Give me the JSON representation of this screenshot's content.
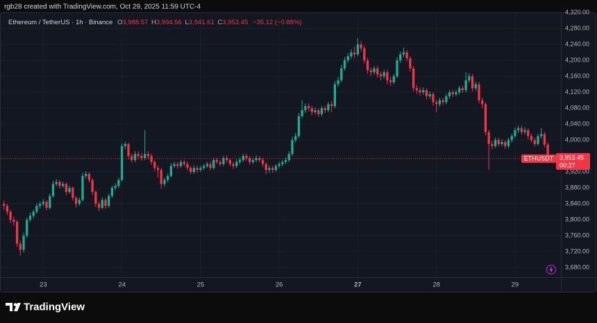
{
  "chart_data": {
    "type": "candlestick",
    "credit": "rgb28 created with TradingView.com, Oct 29, 2025 11:59 UTC-4",
    "header": {
      "symbol": "Ethereum / TetherUS · 1h · Binance",
      "ohlc": [
        {
          "key": "O",
          "text": "3,988.57"
        },
        {
          "key": "H",
          "text": "3,994.56"
        },
        {
          "key": "L",
          "text": "3,941.61"
        },
        {
          "key": "C",
          "text": "3,953.45"
        }
      ],
      "change": "−35.12 (−0.88%)"
    },
    "price_tag": {
      "symbol": "ETHUSDT",
      "price": "3,953.45",
      "countdown": "00:27"
    },
    "brand": "TradingView",
    "up_color": "#22ab94",
    "down_color": "#f23645",
    "grid": true,
    "xlim": [
      -1,
      170
    ],
    "xticks": [
      {
        "value": 12,
        "label": "23"
      },
      {
        "value": 36,
        "label": "24"
      },
      {
        "value": 60,
        "label": "25"
      },
      {
        "value": 84,
        "label": "26"
      },
      {
        "value": 108,
        "label": "27"
      },
      {
        "value": 132,
        "label": "28"
      },
      {
        "value": 156,
        "label": "29"
      }
    ],
    "ylim": [
      3656,
      4320
    ],
    "yticks": [
      {
        "value": 3680,
        "label": "3,680.00"
      },
      {
        "value": 3720,
        "label": "3,720.00"
      },
      {
        "value": 3760,
        "label": "3,760.00"
      },
      {
        "value": 3800,
        "label": "3,800.00"
      },
      {
        "value": 3840,
        "label": "3,840.00"
      },
      {
        "value": 3880,
        "label": "3,880.00"
      },
      {
        "value": 3920,
        "label": "3,920.00"
      },
      {
        "value": 3960,
        "label": "3,960.00"
      },
      {
        "value": 4000,
        "label": "4,000.00"
      },
      {
        "value": 4040,
        "label": "4,040.00"
      },
      {
        "value": 4080,
        "label": "4,080.00"
      },
      {
        "value": 4120,
        "label": "4,120.00"
      },
      {
        "value": 4160,
        "label": "4,160.00"
      },
      {
        "value": 4200,
        "label": "4,200.00"
      },
      {
        "value": 4240,
        "label": "4,240.00"
      },
      {
        "value": 4280,
        "label": "4,280.00"
      },
      {
        "value": 4320,
        "label": "4,320.00"
      }
    ],
    "open": [
      3840,
      3835,
      3820,
      3800,
      3795,
      3740,
      3725,
      3760,
      3800,
      3810,
      3820,
      3835,
      3840,
      3845,
      3830,
      3860,
      3890,
      3895,
      3885,
      3890,
      3870,
      3880,
      3855,
      3840,
      3850,
      3910,
      3915,
      3900,
      3870,
      3840,
      3830,
      3850,
      3835,
      3860,
      3880,
      3885,
      3900,
      3985,
      3990,
      3960,
      3950,
      3965,
      3960,
      3955,
      3965,
      3960,
      3945,
      3930,
      3925,
      3890,
      3900,
      3910,
      3935,
      3940,
      3935,
      3945,
      3940,
      3930,
      3920,
      3930,
      3925,
      3930,
      3935,
      3940,
      3930,
      3950,
      3945,
      3940,
      3955,
      3950,
      3940,
      3935,
      3945,
      3950,
      3960,
      3955,
      3945,
      3950,
      3955,
      3950,
      3940,
      3925,
      3930,
      3925,
      3935,
      3940,
      3945,
      3950,
      3965,
      4000,
      4010,
      4060,
      4075,
      4085,
      4080,
      4070,
      4075,
      4065,
      4080,
      4075,
      4090,
      4085,
      4140,
      4150,
      4180,
      4200,
      4210,
      4220,
      4215,
      4240,
      4230,
      4200,
      4175,
      4170,
      4180,
      4165,
      4160,
      4170,
      4150,
      4145,
      4160,
      4200,
      4215,
      4220,
      4205,
      4180,
      4130,
      4125,
      4120,
      4125,
      4110,
      4115,
      4095,
      4090,
      4100,
      4095,
      4110,
      4120,
      4115,
      4120,
      4130,
      4125,
      4150,
      4160,
      4130,
      4140,
      4100,
      4090,
      4020,
      3990,
      3985,
      4000,
      3990,
      3995,
      3985,
      4000,
      4010,
      4025,
      4030,
      4020,
      4025,
      4010,
      4000,
      3990,
      4010,
      4015,
      3988.57
    ],
    "high": [
      3848,
      3840,
      3826,
      3808,
      3800,
      3748,
      3768,
      3806,
      3818,
      3826,
      3842,
      3846,
      3852,
      3850,
      3866,
      3898,
      3902,
      3900,
      3896,
      3894,
      3886,
      3884,
      3860,
      3856,
      3918,
      3922,
      3920,
      3905,
      3874,
      3846,
      3856,
      3855,
      3866,
      3886,
      3892,
      3906,
      3992,
      3996,
      3994,
      3966,
      3972,
      3972,
      3968,
      4025,
      3972,
      3966,
      3950,
      3936,
      3930,
      3906,
      3916,
      3942,
      3946,
      3946,
      3950,
      3950,
      3946,
      3936,
      3936,
      3936,
      3936,
      3940,
      3946,
      3946,
      3956,
      3956,
      3950,
      3960,
      3962,
      3955,
      3946,
      3952,
      3956,
      3966,
      3966,
      3960,
      3956,
      3962,
      3960,
      3955,
      3945,
      3936,
      3936,
      3940,
      3946,
      3950,
      3956,
      3972,
      4008,
      4018,
      4068,
      4100,
      4092,
      4092,
      4086,
      4082,
      4080,
      4086,
      4086,
      4096,
      4098,
      4148,
      4158,
      4188,
      4208,
      4218,
      4228,
      4235,
      4255,
      4248,
      4236,
      4206,
      4182,
      4186,
      4186,
      4172,
      4176,
      4176,
      4158,
      4166,
      4208,
      4222,
      4232,
      4226,
      4210,
      4186,
      4138,
      4132,
      4132,
      4130,
      4122,
      4120,
      4102,
      4106,
      4106,
      4116,
      4126,
      4126,
      4126,
      4136,
      4136,
      4170,
      4168,
      4166,
      4146,
      4146,
      4106,
      4095,
      4026,
      3998,
      4006,
      4006,
      4002,
      4000,
      4006,
      4016,
      4032,
      4036,
      4036,
      4032,
      4030,
      4016,
      4006,
      4016,
      4030,
      4020,
      3994.56
    ],
    "low": [
      3825,
      3812,
      3792,
      3785,
      3732,
      3710,
      3718,
      3755,
      3795,
      3804,
      3815,
      3828,
      3834,
      3824,
      3826,
      3855,
      3884,
      3878,
      3880,
      3862,
      3865,
      3848,
      3830,
      3835,
      3846,
      3904,
      3894,
      3862,
      3832,
      3822,
      3826,
      3828,
      3830,
      3855,
      3874,
      3880,
      3896,
      3978,
      3952,
      3944,
      3945,
      3952,
      3948,
      3950,
      3952,
      3938,
      3922,
      3905,
      3878,
      3884,
      3894,
      3906,
      3930,
      3928,
      3930,
      3934,
      3924,
      3914,
      3915,
      3918,
      3920,
      3925,
      3930,
      3924,
      3926,
      3940,
      3934,
      3935,
      3944,
      3934,
      3928,
      3930,
      3940,
      3945,
      3948,
      3938,
      3940,
      3944,
      3944,
      3932,
      3915,
      3918,
      3918,
      3920,
      3930,
      3934,
      3940,
      3945,
      3960,
      3994,
      4005,
      4055,
      4068,
      4072,
      4062,
      4064,
      4058,
      4060,
      4068,
      4070,
      4070,
      4080,
      4134,
      4145,
      4174,
      4194,
      4204,
      4206,
      4210,
      4222,
      4192,
      4166,
      4160,
      4164,
      4156,
      4150,
      4154,
      4140,
      4136,
      4140,
      4155,
      4194,
      4208,
      4198,
      4172,
      4122,
      4116,
      4112,
      4114,
      4102,
      4104,
      4086,
      4070,
      4084,
      4088,
      4090,
      4104,
      4108,
      4110,
      4114,
      4118,
      4120,
      4144,
      4122,
      4124,
      4092,
      4080,
      4012,
      3925,
      3976,
      3980,
      3984,
      3984,
      3978,
      3980,
      3994,
      4005,
      4018,
      4014,
      4014,
      4002,
      3994,
      3984,
      3986,
      4004,
      3982,
      3941.61
    ],
    "close": [
      3835,
      3820,
      3800,
      3795,
      3740,
      3725,
      3760,
      3800,
      3810,
      3820,
      3835,
      3840,
      3845,
      3830,
      3860,
      3890,
      3895,
      3885,
      3890,
      3870,
      3880,
      3855,
      3840,
      3850,
      3910,
      3915,
      3900,
      3870,
      3840,
      3830,
      3850,
      3835,
      3860,
      3880,
      3885,
      3900,
      3985,
      3990,
      3960,
      3950,
      3965,
      3960,
      3955,
      3965,
      3960,
      3945,
      3930,
      3925,
      3890,
      3900,
      3910,
      3935,
      3940,
      3935,
      3945,
      3940,
      3930,
      3920,
      3930,
      3925,
      3930,
      3935,
      3940,
      3930,
      3950,
      3945,
      3940,
      3955,
      3950,
      3940,
      3935,
      3945,
      3950,
      3960,
      3955,
      3945,
      3950,
      3955,
      3950,
      3940,
      3925,
      3930,
      3925,
      3935,
      3940,
      3945,
      3950,
      3965,
      4000,
      4010,
      4060,
      4075,
      4085,
      4080,
      4070,
      4075,
      4065,
      4080,
      4075,
      4090,
      4085,
      4140,
      4150,
      4180,
      4200,
      4210,
      4220,
      4215,
      4240,
      4230,
      4200,
      4175,
      4170,
      4180,
      4165,
      4160,
      4170,
      4150,
      4145,
      4160,
      4200,
      4215,
      4220,
      4205,
      4180,
      4130,
      4125,
      4120,
      4125,
      4110,
      4115,
      4095,
      4090,
      4100,
      4095,
      4110,
      4120,
      4115,
      4120,
      4130,
      4125,
      4150,
      4160,
      4130,
      4140,
      4100,
      4090,
      4020,
      3990,
      3985,
      4000,
      3990,
      3995,
      3985,
      4000,
      4010,
      4025,
      4030,
      4020,
      4025,
      4010,
      4000,
      3990,
      4010,
      4015,
      3988.57,
      3953.45
    ]
  }
}
